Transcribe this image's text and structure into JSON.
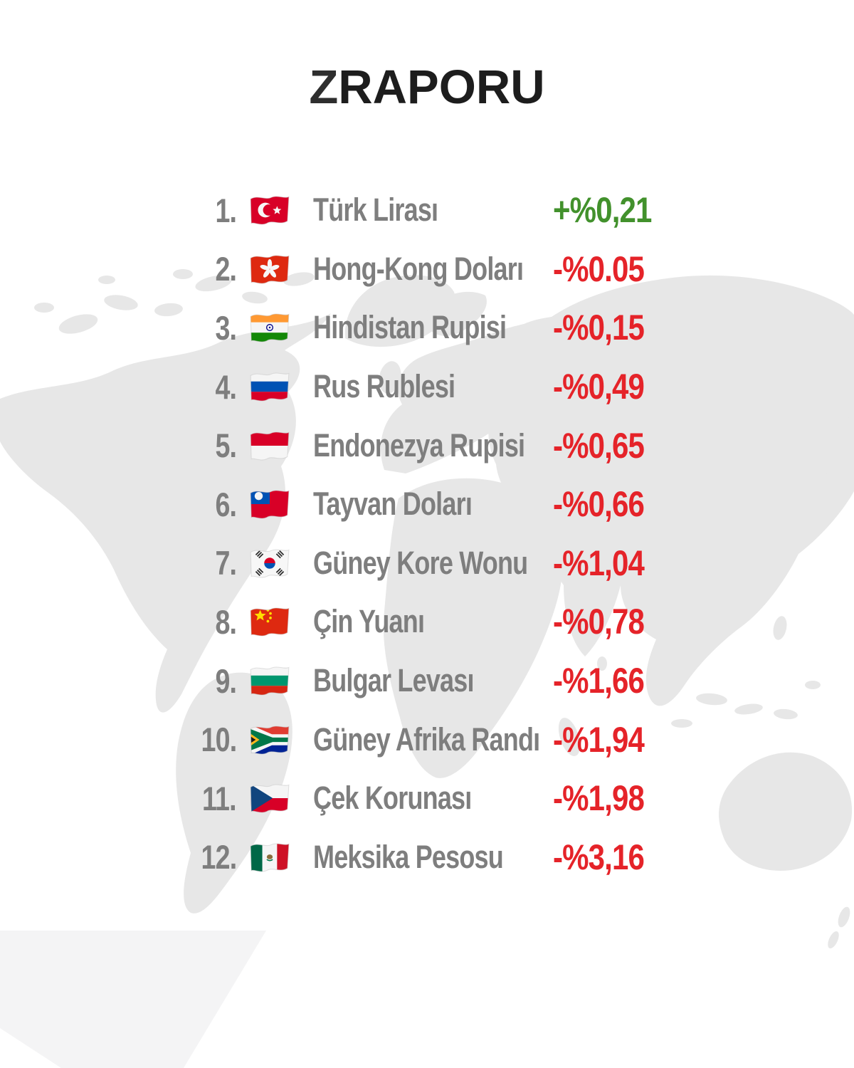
{
  "title": {
    "z": "Z",
    "rest": "RAPORU",
    "full": "ZRAPORU"
  },
  "colors": {
    "positive_green": "#42912c",
    "negative_red": "#e52329",
    "row_text_gray": "#7e7e7e",
    "map_gray": "#e7e7e7",
    "corner_shape_gray": "#f4f4f5",
    "title_black": "#1d1d1d",
    "background": "#ffffff"
  },
  "list": {
    "rows": [
      {
        "rank": "1.",
        "flag": "tr",
        "flag_label": "turkey",
        "name": "Türk Lirası",
        "value": "+%0,21",
        "direction": "up"
      },
      {
        "rank": "2.",
        "flag": "hk",
        "flag_label": "hong-kong",
        "name": "Hong-Kong Doları",
        "value": "-%0.05",
        "direction": "down"
      },
      {
        "rank": "3.",
        "flag": "in",
        "flag_label": "india",
        "name": "Hindistan Rupisi",
        "value": "-%0,15",
        "direction": "down"
      },
      {
        "rank": "4.",
        "flag": "ru",
        "flag_label": "russia",
        "name": "Rus Rublesi",
        "value": "-%0,49",
        "direction": "down"
      },
      {
        "rank": "5.",
        "flag": "id",
        "flag_label": "indonesia",
        "name": "Endonezya Rupisi",
        "value": "-%0,65",
        "direction": "down"
      },
      {
        "rank": "6.",
        "flag": "tw",
        "flag_label": "taiwan",
        "name": "Tayvan Doları",
        "value": "-%0,66",
        "direction": "down"
      },
      {
        "rank": "7.",
        "flag": "kr",
        "flag_label": "south-korea",
        "name": "Güney Kore Wonu",
        "value": "-%1,04",
        "direction": "down"
      },
      {
        "rank": "8.",
        "flag": "cn",
        "flag_label": "china",
        "name": "Çin Yuanı",
        "value": "-%0,78",
        "direction": "down"
      },
      {
        "rank": "9.",
        "flag": "bg",
        "flag_label": "bulgaria",
        "name": "Bulgar Levası",
        "value": "-%1,66",
        "direction": "down"
      },
      {
        "rank": "10.",
        "flag": "za",
        "flag_label": "south-africa",
        "name": "Güney Afrika Randı",
        "value": "-%1,94",
        "direction": "down"
      },
      {
        "rank": "11.",
        "flag": "cz",
        "flag_label": "czechia",
        "name": "Çek Korunası",
        "value": "-%1,98",
        "direction": "down"
      },
      {
        "rank": "12.",
        "flag": "mx",
        "flag_label": "mexico",
        "name": "Meksika Pesosu",
        "value": "-%3,16",
        "direction": "down"
      }
    ]
  },
  "chart_data": {
    "type": "table",
    "title": "ZRAPORU",
    "columns": [
      "rank",
      "currency",
      "daily_change_percent"
    ],
    "categories": [
      "Türk Lirası",
      "Hong-Kong Doları",
      "Hindistan Rupisi",
      "Rus Rublesi",
      "Endonezya Rupisi",
      "Tayvan Doları",
      "Güney Kore Wonu",
      "Çin Yuanı",
      "Bulgar Levası",
      "Güney Afrika Randı",
      "Çek Korunası",
      "Meksika Pesosu"
    ],
    "values": [
      0.21,
      -0.05,
      -0.15,
      -0.49,
      -0.65,
      -0.66,
      -1.04,
      -0.78,
      -1.66,
      -1.94,
      -1.98,
      -3.16
    ],
    "value_labels": [
      "+%0,21",
      "-%0.05",
      "-%0,15",
      "-%0,49",
      "-%0,65",
      "-%0,66",
      "-%1,04",
      "-%0,78",
      "-%1,66",
      "-%1,94",
      "-%1,98",
      "-%3,16"
    ],
    "positive_color": "#42912c",
    "negative_color": "#e52329"
  }
}
